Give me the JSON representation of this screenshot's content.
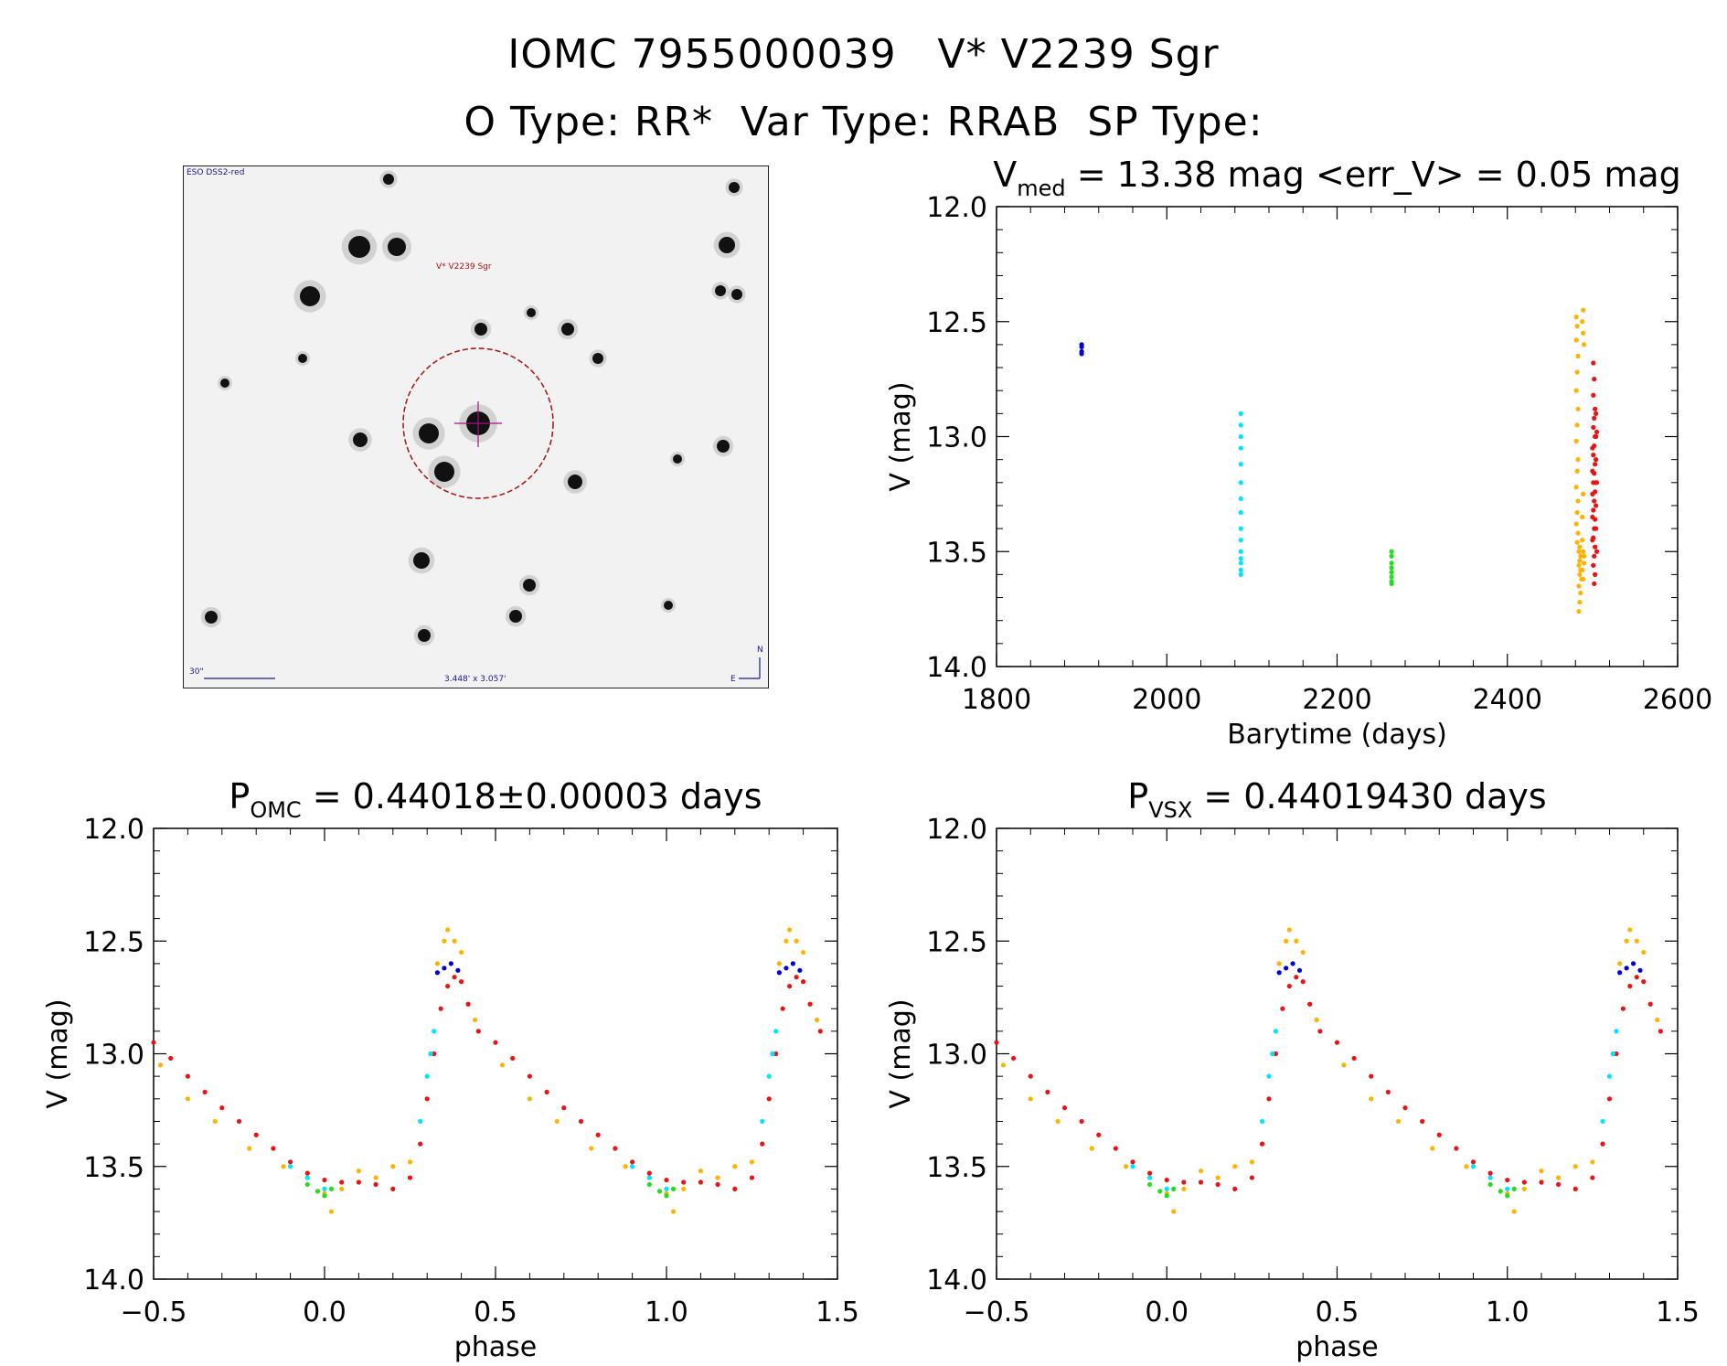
{
  "header": {
    "line1": "IOMC 7955000039   V* V2239 Sgr",
    "line2": "O Type: RR*  Var Type: RRAB  SP Type:"
  },
  "finder_chart": {
    "survey_label": "ESO DSS2-red",
    "target_label": "V* V2239 Sgr",
    "scale_label": "30\"",
    "fov_label": "3.448' x 3.057'",
    "compass_n": "N",
    "compass_e": "E"
  },
  "colors": {
    "blue": "#0000dd",
    "cyan": "#00e5ff",
    "green": "#22dd22",
    "orange": "#ffb300",
    "red": "#ee1111"
  },
  "chart_data": [
    {
      "id": "lightcurve",
      "type": "scatter",
      "title": "V_med = 13.38 mag <err_V> = 0.05 mag",
      "title_parts": {
        "main": "V",
        "sub": "med",
        "rest": " = 13.38 mag <err_V> = 0.05 mag"
      },
      "xlabel": "Barytime (days)",
      "ylabel": "V (mag)",
      "xlim": [
        1800,
        2600
      ],
      "ylim": [
        14.0,
        12.0
      ],
      "y_inverted": true,
      "xticks": [
        1800,
        2000,
        2200,
        2400,
        2600
      ],
      "xtick_labels": [
        "1800",
        "2000",
        "2200",
        "2400",
        "2600"
      ],
      "yticks": [
        12.0,
        12.5,
        13.0,
        13.5,
        14.0
      ],
      "ytick_labels": [
        "12.0",
        "12.5",
        "13.0",
        "13.5",
        "14.0"
      ],
      "series": [
        {
          "color": "blue",
          "points": [
            [
              1900,
              12.61
            ],
            [
              1900,
              12.63
            ],
            [
              1900,
              12.6
            ],
            [
              1900,
              12.64
            ]
          ]
        },
        {
          "color": "cyan",
          "points": [
            [
              2087,
              12.9
            ],
            [
              2087,
              12.95
            ],
            [
              2087,
              13.0
            ],
            [
              2087,
              13.05
            ],
            [
              2087,
              13.12
            ],
            [
              2087,
              13.2
            ],
            [
              2087,
              13.27
            ],
            [
              2087,
              13.33
            ],
            [
              2087,
              13.4
            ],
            [
              2087,
              13.45
            ],
            [
              2087,
              13.5
            ],
            [
              2087,
              13.53
            ],
            [
              2087,
              13.55
            ],
            [
              2087,
              13.58
            ],
            [
              2087,
              13.6
            ]
          ]
        },
        {
          "color": "green",
          "points": [
            [
              2264,
              13.5
            ],
            [
              2264,
              13.52
            ],
            [
              2264,
              13.55
            ],
            [
              2264,
              13.57
            ],
            [
              2264,
              13.59
            ],
            [
              2264,
              13.61
            ],
            [
              2264,
              13.63
            ],
            [
              2264,
              13.64
            ]
          ]
        },
        {
          "color": "orange",
          "points": [
            [
              2481,
              12.48
            ],
            [
              2482,
              12.52
            ],
            [
              2481,
              12.58
            ],
            [
              2483,
              12.65
            ],
            [
              2482,
              12.72
            ],
            [
              2481,
              12.8
            ],
            [
              2483,
              12.88
            ],
            [
              2482,
              12.95
            ],
            [
              2481,
              13.02
            ],
            [
              2483,
              13.1
            ],
            [
              2482,
              13.15
            ],
            [
              2481,
              13.22
            ],
            [
              2483,
              13.28
            ],
            [
              2482,
              13.33
            ],
            [
              2481,
              13.38
            ],
            [
              2483,
              13.42
            ],
            [
              2482,
              13.46
            ],
            [
              2485,
              13.48
            ],
            [
              2484,
              13.5
            ],
            [
              2486,
              13.52
            ],
            [
              2485,
              13.54
            ],
            [
              2484,
              13.56
            ],
            [
              2486,
              13.58
            ],
            [
              2485,
              13.6
            ],
            [
              2487,
              13.62
            ],
            [
              2484,
              13.65
            ],
            [
              2486,
              13.68
            ],
            [
              2485,
              13.72
            ],
            [
              2484,
              13.76
            ],
            [
              2489,
              12.45
            ],
            [
              2488,
              12.5
            ],
            [
              2489,
              12.55
            ],
            [
              2490,
              12.6
            ],
            [
              2488,
              13.45
            ],
            [
              2489,
              13.5
            ],
            [
              2490,
              13.55
            ],
            [
              2488,
              13.58
            ],
            [
              2489,
              13.62
            ],
            [
              2490,
              13.52
            ],
            [
              2488,
              13.35
            ],
            [
              2489,
              13.25
            ]
          ]
        },
        {
          "color": "red",
          "points": [
            [
              2501,
              12.68
            ],
            [
              2502,
              12.75
            ],
            [
              2501,
              12.82
            ],
            [
              2503,
              12.88
            ],
            [
              2502,
              12.92
            ],
            [
              2501,
              12.96
            ],
            [
              2503,
              13.0
            ],
            [
              2502,
              13.04
            ],
            [
              2501,
              13.08
            ],
            [
              2503,
              13.12
            ],
            [
              2502,
              13.16
            ],
            [
              2501,
              13.2
            ],
            [
              2503,
              13.24
            ],
            [
              2502,
              13.28
            ],
            [
              2501,
              13.32
            ],
            [
              2503,
              13.36
            ],
            [
              2502,
              13.4
            ],
            [
              2501,
              13.44
            ],
            [
              2503,
              13.48
            ],
            [
              2502,
              13.52
            ],
            [
              2501,
              13.56
            ],
            [
              2503,
              13.6
            ],
            [
              2502,
              13.64
            ],
            [
              2504,
              12.9
            ],
            [
              2504,
              13.0
            ],
            [
              2504,
              13.1
            ],
            [
              2504,
              13.2
            ],
            [
              2504,
              13.3
            ],
            [
              2504,
              13.4
            ],
            [
              2500,
              13.05
            ],
            [
              2500,
              13.15
            ],
            [
              2500,
              13.25
            ],
            [
              2500,
              13.35
            ],
            [
              2500,
              13.45
            ],
            [
              2505,
              13.5
            ],
            [
              2505,
              13.2
            ],
            [
              2505,
              12.98
            ]
          ]
        }
      ]
    },
    {
      "id": "phase_omc",
      "type": "scatter",
      "title": "P_OMC = 0.44018±0.00003 days",
      "title_parts": {
        "main": "P",
        "sub": "OMC",
        "rest": " = 0.44018±0.00003 days"
      },
      "xlabel": "phase",
      "ylabel": "V (mag)",
      "xlim": [
        -0.5,
        1.5
      ],
      "ylim": [
        14.0,
        12.0
      ],
      "y_inverted": true,
      "xticks": [
        -0.5,
        0.0,
        0.5,
        1.0,
        1.5
      ],
      "xtick_labels": [
        "−0.5",
        "0.0",
        "0.5",
        "1.0",
        "1.5"
      ],
      "yticks": [
        12.0,
        12.5,
        13.0,
        13.5,
        14.0
      ],
      "ytick_labels": [
        "12.0",
        "12.5",
        "13.0",
        "13.5",
        "14.0"
      ],
      "phased_curve": {
        "period_repeat": 1.0,
        "red": [
          [
            -0.5,
            12.95
          ],
          [
            -0.45,
            13.02
          ],
          [
            -0.4,
            13.1
          ],
          [
            -0.35,
            13.17
          ],
          [
            -0.3,
            13.24
          ],
          [
            -0.25,
            13.3
          ],
          [
            -0.2,
            13.36
          ],
          [
            -0.15,
            13.42
          ],
          [
            -0.1,
            13.48
          ],
          [
            -0.05,
            13.53
          ],
          [
            0.0,
            13.56
          ],
          [
            0.05,
            13.57
          ],
          [
            0.1,
            13.57
          ],
          [
            0.15,
            13.58
          ],
          [
            0.2,
            13.6
          ],
          [
            0.25,
            13.55
          ],
          [
            0.28,
            13.4
          ],
          [
            0.3,
            13.2
          ],
          [
            0.32,
            13.0
          ],
          [
            0.34,
            12.8
          ],
          [
            0.36,
            12.7
          ],
          [
            0.38,
            12.66
          ],
          [
            0.4,
            12.68
          ],
          [
            0.42,
            12.78
          ],
          [
            0.45,
            12.9
          ]
        ],
        "orange": [
          [
            -0.48,
            13.05
          ],
          [
            -0.4,
            13.2
          ],
          [
            -0.32,
            13.3
          ],
          [
            -0.22,
            13.42
          ],
          [
            -0.12,
            13.5
          ],
          [
            -0.05,
            13.55
          ],
          [
            0.0,
            13.62
          ],
          [
            0.02,
            13.7
          ],
          [
            0.05,
            13.6
          ],
          [
            0.1,
            13.52
          ],
          [
            0.15,
            13.55
          ],
          [
            0.2,
            13.5
          ],
          [
            0.25,
            13.48
          ],
          [
            0.33,
            12.6
          ],
          [
            0.35,
            12.5
          ],
          [
            0.36,
            12.45
          ],
          [
            0.38,
            12.5
          ],
          [
            0.4,
            12.55
          ],
          [
            0.44,
            12.85
          ]
        ],
        "blue": [
          [
            0.33,
            12.64
          ],
          [
            0.35,
            12.62
          ],
          [
            0.37,
            12.6
          ],
          [
            0.39,
            12.63
          ]
        ],
        "cyan": [
          [
            -0.1,
            13.5
          ],
          [
            -0.05,
            13.55
          ],
          [
            0.0,
            13.6
          ],
          [
            0.28,
            13.3
          ],
          [
            0.3,
            13.1
          ],
          [
            0.31,
            13.0
          ],
          [
            0.32,
            12.9
          ]
        ],
        "green": [
          [
            -0.05,
            13.58
          ],
          [
            -0.02,
            13.61
          ],
          [
            0.0,
            13.63
          ],
          [
            0.02,
            13.6
          ]
        ]
      }
    },
    {
      "id": "phase_vsx",
      "type": "scatter",
      "title": "P_VSX = 0.44019430 days",
      "title_parts": {
        "main": "P",
        "sub": "VSX",
        "rest": " = 0.44019430 days"
      },
      "xlabel": "phase",
      "ylabel": "V (mag)",
      "xlim": [
        -0.5,
        1.5
      ],
      "ylim": [
        14.0,
        12.0
      ],
      "y_inverted": true,
      "xticks": [
        -0.5,
        0.0,
        0.5,
        1.0,
        1.5
      ],
      "xtick_labels": [
        "−0.5",
        "0.0",
        "0.5",
        "1.0",
        "1.5"
      ],
      "yticks": [
        12.0,
        12.5,
        13.0,
        13.5,
        14.0
      ],
      "ytick_labels": [
        "12.0",
        "12.5",
        "13.0",
        "13.5",
        "14.0"
      ],
      "phased_curve": {
        "period_repeat": 1.0,
        "red": [
          [
            -0.5,
            12.95
          ],
          [
            -0.45,
            13.02
          ],
          [
            -0.4,
            13.1
          ],
          [
            -0.35,
            13.17
          ],
          [
            -0.3,
            13.24
          ],
          [
            -0.25,
            13.3
          ],
          [
            -0.2,
            13.36
          ],
          [
            -0.15,
            13.42
          ],
          [
            -0.1,
            13.48
          ],
          [
            -0.05,
            13.53
          ],
          [
            0.0,
            13.56
          ],
          [
            0.05,
            13.57
          ],
          [
            0.1,
            13.57
          ],
          [
            0.15,
            13.58
          ],
          [
            0.2,
            13.6
          ],
          [
            0.25,
            13.55
          ],
          [
            0.28,
            13.4
          ],
          [
            0.3,
            13.2
          ],
          [
            0.32,
            13.0
          ],
          [
            0.34,
            12.8
          ],
          [
            0.36,
            12.7
          ],
          [
            0.38,
            12.66
          ],
          [
            0.4,
            12.68
          ],
          [
            0.42,
            12.78
          ],
          [
            0.45,
            12.9
          ]
        ],
        "orange": [
          [
            -0.48,
            13.05
          ],
          [
            -0.4,
            13.2
          ],
          [
            -0.32,
            13.3
          ],
          [
            -0.22,
            13.42
          ],
          [
            -0.12,
            13.5
          ],
          [
            -0.05,
            13.55
          ],
          [
            0.0,
            13.62
          ],
          [
            0.02,
            13.7
          ],
          [
            0.05,
            13.6
          ],
          [
            0.1,
            13.52
          ],
          [
            0.15,
            13.55
          ],
          [
            0.2,
            13.5
          ],
          [
            0.25,
            13.48
          ],
          [
            0.33,
            12.6
          ],
          [
            0.35,
            12.5
          ],
          [
            0.36,
            12.45
          ],
          [
            0.38,
            12.5
          ],
          [
            0.4,
            12.55
          ],
          [
            0.44,
            12.85
          ]
        ],
        "blue": [
          [
            0.33,
            12.64
          ],
          [
            0.35,
            12.62
          ],
          [
            0.37,
            12.6
          ],
          [
            0.39,
            12.63
          ]
        ],
        "cyan": [
          [
            -0.1,
            13.5
          ],
          [
            -0.05,
            13.55
          ],
          [
            0.0,
            13.6
          ],
          [
            0.28,
            13.3
          ],
          [
            0.3,
            13.1
          ],
          [
            0.31,
            13.0
          ],
          [
            0.32,
            12.9
          ]
        ],
        "green": [
          [
            -0.05,
            13.58
          ],
          [
            -0.02,
            13.61
          ],
          [
            0.0,
            13.63
          ],
          [
            0.02,
            13.6
          ]
        ]
      }
    }
  ]
}
